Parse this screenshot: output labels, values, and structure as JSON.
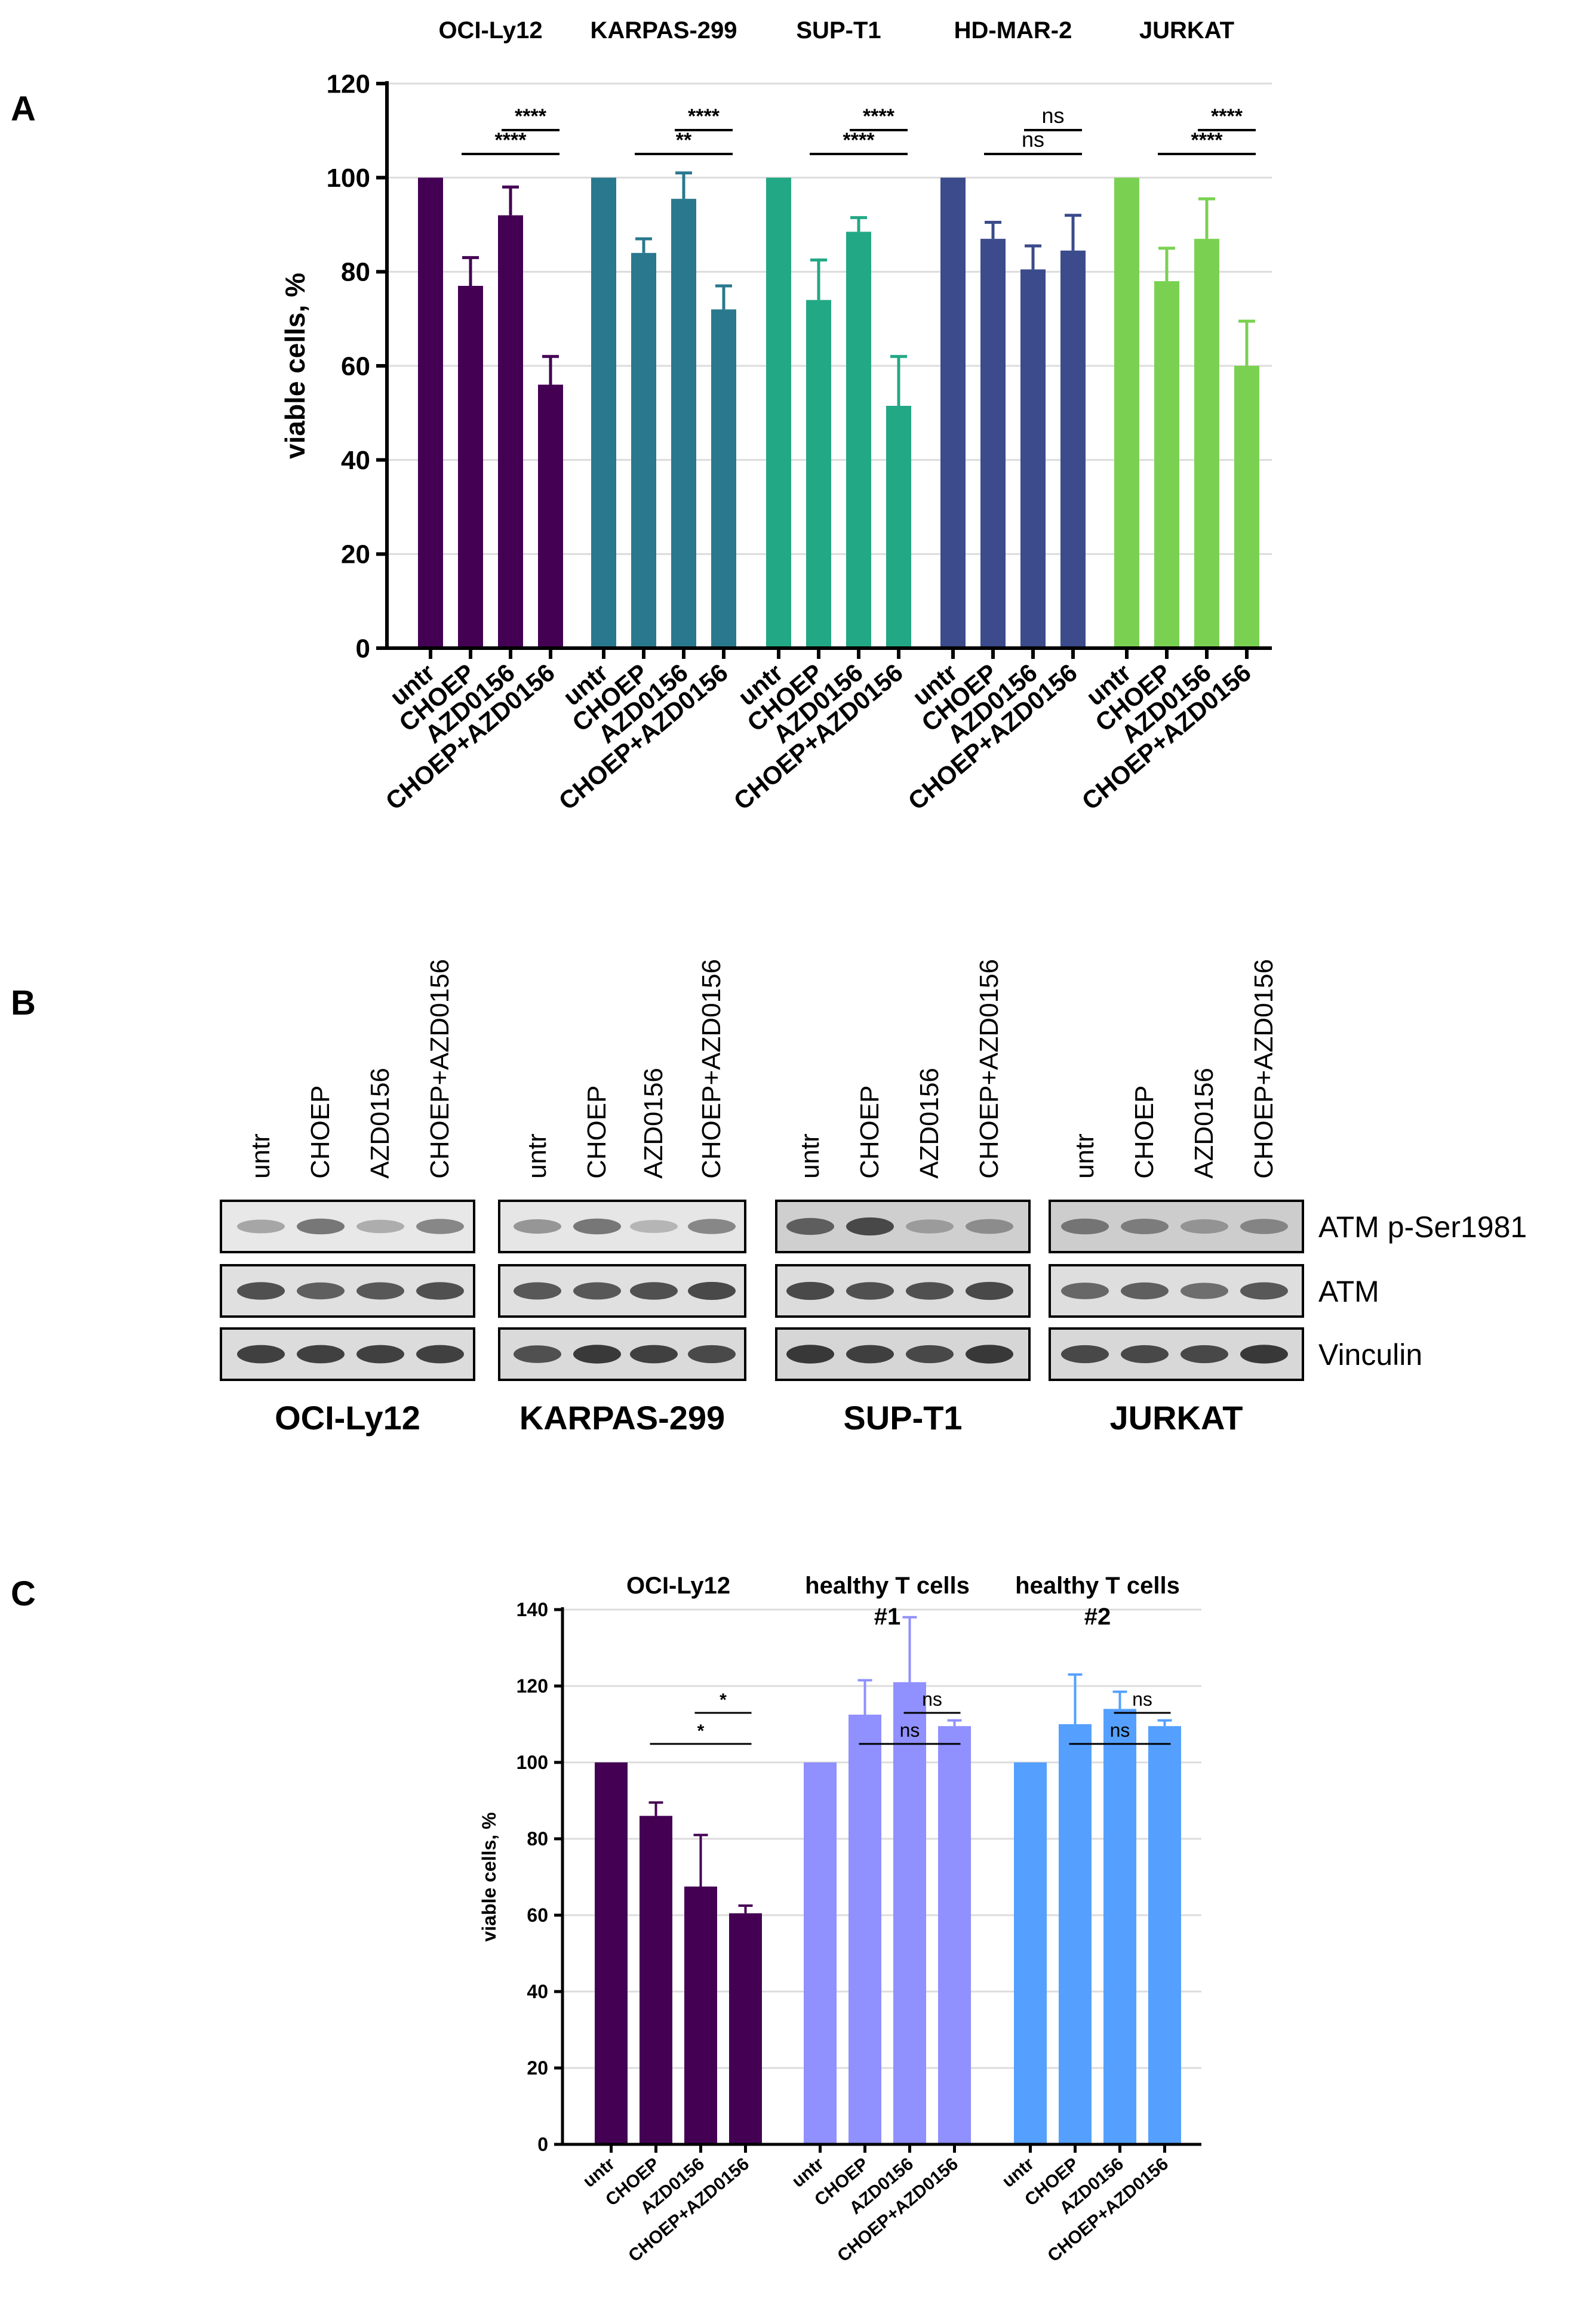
{
  "figure": {
    "panel_labels": [
      "A",
      "B",
      "C"
    ]
  },
  "chart_data": [
    {
      "id": "A",
      "type": "bar",
      "title": "",
      "xlabel": "",
      "ylabel": "viable cells, %",
      "ylim": [
        0,
        120
      ],
      "yticks": [
        0,
        20,
        40,
        60,
        80,
        100,
        120
      ],
      "grid": true,
      "categories": [
        "untr",
        "CHOEP",
        "AZD0156",
        "CHOEP+AZD0156"
      ],
      "groups": [
        {
          "name": "OCI-Ly12",
          "color": "#440154",
          "values": [
            100,
            77,
            92,
            56
          ],
          "errors": [
            0,
            6,
            6,
            6
          ],
          "comparisons": [
            {
              "label": "****",
              "from": 2,
              "to": 3
            },
            {
              "label": "****",
              "from": 1,
              "to": 3
            }
          ]
        },
        {
          "name": "KARPAS-299",
          "color": "#2A788E",
          "values": [
            100,
            84,
            95.5,
            72
          ],
          "errors": [
            0,
            3,
            5.5,
            5
          ],
          "comparisons": [
            {
              "label": "****",
              "from": 2,
              "to": 3
            },
            {
              "label": "**",
              "from": 1,
              "to": 3
            }
          ]
        },
        {
          "name": "SUP-T1",
          "color": "#22A884",
          "values": [
            100,
            74,
            88.5,
            51.5
          ],
          "errors": [
            0,
            8.5,
            3,
            10.5
          ],
          "comparisons": [
            {
              "label": "****",
              "from": 2,
              "to": 3
            },
            {
              "label": "****",
              "from": 1,
              "to": 3
            }
          ]
        },
        {
          "name": "HD-MAR-2",
          "color": "#3B4B8B",
          "values": [
            100,
            87,
            80.5,
            84.5
          ],
          "errors": [
            0,
            3.5,
            5,
            7.5
          ],
          "comparisons": [
            {
              "label": "ns",
              "from": 2,
              "to": 3
            },
            {
              "label": "ns",
              "from": 1,
              "to": 3
            }
          ]
        },
        {
          "name": "JURKAT",
          "color": "#7AD151",
          "values": [
            100,
            78,
            87,
            60
          ],
          "errors": [
            0,
            7,
            8.5,
            9.5
          ],
          "comparisons": [
            {
              "label": "****",
              "from": 2,
              "to": 3
            },
            {
              "label": "****",
              "from": 1,
              "to": 3
            }
          ]
        }
      ]
    },
    {
      "id": "C",
      "type": "bar",
      "title": "",
      "xlabel": "",
      "ylabel": "viable cells, %",
      "ylim": [
        0,
        140
      ],
      "yticks": [
        0,
        20,
        40,
        60,
        80,
        100,
        120,
        140
      ],
      "grid": true,
      "categories": [
        "untr",
        "CHOEP",
        "AZD0156",
        "CHOEP+AZD0156"
      ],
      "groups": [
        {
          "name": "OCI-Ly12",
          "name_lines": [
            "OCI-Ly12"
          ],
          "color": "#440154",
          "values": [
            100,
            86,
            67.5,
            60.5
          ],
          "errors": [
            0,
            3.5,
            13.5,
            2
          ],
          "comparisons": [
            {
              "label": "*",
              "from": 2,
              "to": 3
            },
            {
              "label": "*",
              "from": 1,
              "to": 3
            }
          ]
        },
        {
          "name": "healthy T cells #1",
          "name_lines": [
            "healthy T cells",
            "#1"
          ],
          "color": "#9090FF",
          "values": [
            100,
            112.5,
            121,
            109.5
          ],
          "errors": [
            0,
            9,
            17,
            1.5
          ],
          "comparisons": [
            {
              "label": "ns",
              "from": 2,
              "to": 3
            },
            {
              "label": "ns",
              "from": 1,
              "to": 3
            }
          ]
        },
        {
          "name": "healthy T cells #2",
          "name_lines": [
            "healthy T cells",
            "#2"
          ],
          "color": "#55A0FF",
          "values": [
            100,
            110,
            114,
            109.5
          ],
          "errors": [
            0,
            13,
            4.5,
            1.5
          ],
          "comparisons": [
            {
              "label": "ns",
              "from": 2,
              "to": 3
            },
            {
              "label": "ns",
              "from": 1,
              "to": 3
            }
          ]
        }
      ]
    }
  ],
  "western_blot": {
    "lanes": [
      "untr",
      "CHOEP",
      "AZD0156",
      "CHOEP+AZD0156"
    ],
    "rows": [
      "ATM p-Ser1981",
      "ATM",
      "Vinculin"
    ],
    "cell_lines": [
      "OCI-Ly12",
      "KARPAS-299",
      "SUP-T1",
      "JURKAT"
    ]
  }
}
